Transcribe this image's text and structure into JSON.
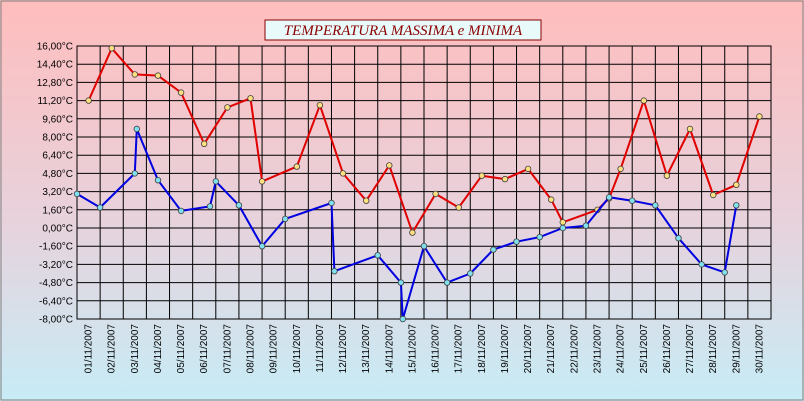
{
  "chart_data": {
    "type": "line",
    "title": "TEMPERATURA MASSIMA e MINIMA",
    "xlabel": "",
    "ylabel": "",
    "ylim": [
      -8.0,
      16.0
    ],
    "yticks": [
      "16,00°C",
      "14,40°C",
      "12,80°C",
      "11,20°C",
      "9,60°C",
      "8,00°C",
      "6,40°C",
      "4,80°C",
      "3,20°C",
      "1,60°C",
      "0,00°C",
      "-1,60°C",
      "-3,20°C",
      "-4,80°C",
      "-6,40°C",
      "-8,00°C"
    ],
    "xticks": [
      "01/11/2007",
      "02/11/2007",
      "03/11/2007",
      "04/11/2007",
      "05/11/2007",
      "06/11/2007",
      "07/11/2007",
      "08/11/2007",
      "09/11/2007",
      "10/11/2007",
      "11/11/2007",
      "12/11/2007",
      "13/11/2007",
      "14/11/2007",
      "15/11/2007",
      "16/11/2007",
      "17/11/2007",
      "18/11/2007",
      "19/11/2007",
      "20/11/2007",
      "21/11/2007",
      "22/11/2007",
      "23/11/2007",
      "24/11/2007",
      "25/11/2007",
      "26/11/2007",
      "27/11/2007",
      "28/11/2007",
      "29/11/2007",
      "30/11/2007"
    ],
    "grid": true,
    "series": [
      {
        "color": "#e00000",
        "marker_color": "#ffe080",
        "points": [
          [
            "2007-11-01 12:00",
            11.2
          ],
          [
            "2007-11-02 12:00",
            15.8
          ],
          [
            "2007-11-03 12:00",
            13.5
          ],
          [
            "2007-11-04 12:00",
            13.4
          ],
          [
            "2007-11-05 12:00",
            11.9
          ],
          [
            "2007-11-06 12:00",
            7.4
          ],
          [
            "2007-11-07 12:00",
            10.6
          ],
          [
            "2007-11-08 12:00",
            11.4
          ],
          [
            "2007-11-09 00:00",
            4.1
          ],
          [
            "2007-11-10 12:00",
            5.4
          ],
          [
            "2007-11-11 12:00",
            10.8
          ],
          [
            "2007-11-12 12:00",
            4.8
          ],
          [
            "2007-11-13 12:00",
            2.4
          ],
          [
            "2007-11-14 12:00",
            5.5
          ],
          [
            "2007-11-15 12:00",
            -0.4
          ],
          [
            "2007-11-16 12:00",
            3.0
          ],
          [
            "2007-11-17 12:00",
            1.8
          ],
          [
            "2007-11-18 12:00",
            4.6
          ],
          [
            "2007-11-19 12:00",
            4.3
          ],
          [
            "2007-11-20 12:00",
            5.2
          ],
          [
            "2007-11-21 12:00",
            2.5
          ],
          [
            "2007-11-22 00:00",
            0.5
          ],
          [
            "2007-11-23 12:00",
            1.6
          ],
          [
            "2007-11-24 00:00",
            2.6
          ],
          [
            "2007-11-24 12:00",
            5.2
          ],
          [
            "2007-11-25 12:00",
            11.2
          ],
          [
            "2007-11-26 12:00",
            4.6
          ],
          [
            "2007-11-27 12:00",
            8.7
          ],
          [
            "2007-11-28 12:00",
            2.9
          ],
          [
            "2007-11-29 12:00",
            3.8
          ],
          [
            "2007-11-30 12:00",
            9.8
          ]
        ]
      },
      {
        "color": "#0000e0",
        "marker_color": "#80e0f0",
        "points": [
          [
            "2007-11-01 00:00",
            3.0
          ],
          [
            "2007-11-02 00:00",
            1.8
          ],
          [
            "2007-11-03 12:00",
            4.8
          ],
          [
            "2007-11-03 14:00",
            8.7
          ],
          [
            "2007-11-04 12:00",
            4.2
          ],
          [
            "2007-11-05 12:00",
            1.5
          ],
          [
            "2007-11-06 18:00",
            1.9
          ],
          [
            "2007-11-07 00:00",
            4.1
          ],
          [
            "2007-11-08 00:00",
            2.0
          ],
          [
            "2007-11-09 00:00",
            -1.6
          ],
          [
            "2007-11-10 00:00",
            0.8
          ],
          [
            "2007-11-12 00:00",
            2.2
          ],
          [
            "2007-11-12 03:00",
            -3.8
          ],
          [
            "2007-11-14 00:00",
            -2.4
          ],
          [
            "2007-11-15 00:00",
            -4.8
          ],
          [
            "2007-11-15 02:00",
            -8.0
          ],
          [
            "2007-11-16 00:00",
            -1.6
          ],
          [
            "2007-11-17 00:00",
            -4.8
          ],
          [
            "2007-11-18 00:00",
            -4.0
          ],
          [
            "2007-11-19 00:00",
            -1.9
          ],
          [
            "2007-11-20 00:00",
            -1.2
          ],
          [
            "2007-11-21 00:00",
            -0.8
          ],
          [
            "2007-11-22 00:00",
            0.0
          ],
          [
            "2007-11-23 00:00",
            0.2
          ],
          [
            "2007-11-24 00:00",
            2.7
          ],
          [
            "2007-11-25 00:00",
            2.4
          ],
          [
            "2007-11-26 00:00",
            2.0
          ],
          [
            "2007-11-27 00:00",
            -0.9
          ],
          [
            "2007-11-28 00:00",
            -3.2
          ],
          [
            "2007-11-29 00:00",
            -3.9
          ],
          [
            "2007-11-29 12:00",
            2.0
          ]
        ]
      }
    ]
  }
}
